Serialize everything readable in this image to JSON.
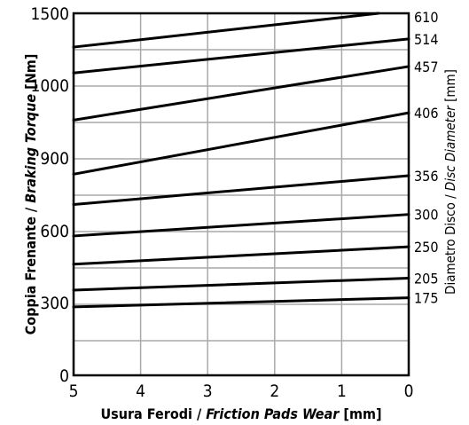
{
  "chart_data": {
    "type": "line",
    "xlabel": {
      "prefix": "Usura Ferodi / ",
      "italic": "Friction Pads Wear",
      "unit": " [mm]"
    },
    "ylabel": {
      "prefix": "Coppia Frenante / ",
      "italic": "Braking Torque",
      "unit": " [Nm]"
    },
    "y2label": {
      "prefix": "Diametro Disco / ",
      "italic": "Disc Diameter",
      "unit": " [mm]"
    },
    "x_ticks": [
      5,
      4,
      3,
      2,
      1,
      0
    ],
    "x_range": [
      5,
      0
    ],
    "y_tick_labels": [
      "0",
      "300",
      "600",
      "900",
      "1000",
      "1500"
    ],
    "grid": true,
    "series": [
      {
        "name": "175",
        "values": [
          [
            5,
            282
          ],
          [
            0,
            320
          ]
        ]
      },
      {
        "name": "205",
        "values": [
          [
            5,
            352
          ],
          [
            0,
            402
          ]
        ]
      },
      {
        "name": "250",
        "values": [
          [
            5,
            460
          ],
          [
            0,
            533
          ]
        ]
      },
      {
        "name": "300",
        "values": [
          [
            5,
            578
          ],
          [
            0,
            667
          ]
        ]
      },
      {
        "name": "356",
        "values": [
          [
            5,
            708
          ],
          [
            0,
            827
          ]
        ]
      },
      {
        "name": "406",
        "values": [
          [
            5,
            833
          ],
          [
            0,
            962
          ]
        ]
      },
      {
        "name": "457",
        "values": [
          [
            5,
            952
          ],
          [
            0,
            1130
          ]
        ]
      },
      {
        "name": "514",
        "values": [
          [
            5,
            1085
          ],
          [
            0,
            1322
          ]
        ]
      },
      {
        "name": "610",
        "values": [
          [
            5,
            1265
          ],
          [
            0.45,
            1500
          ]
        ]
      }
    ]
  }
}
